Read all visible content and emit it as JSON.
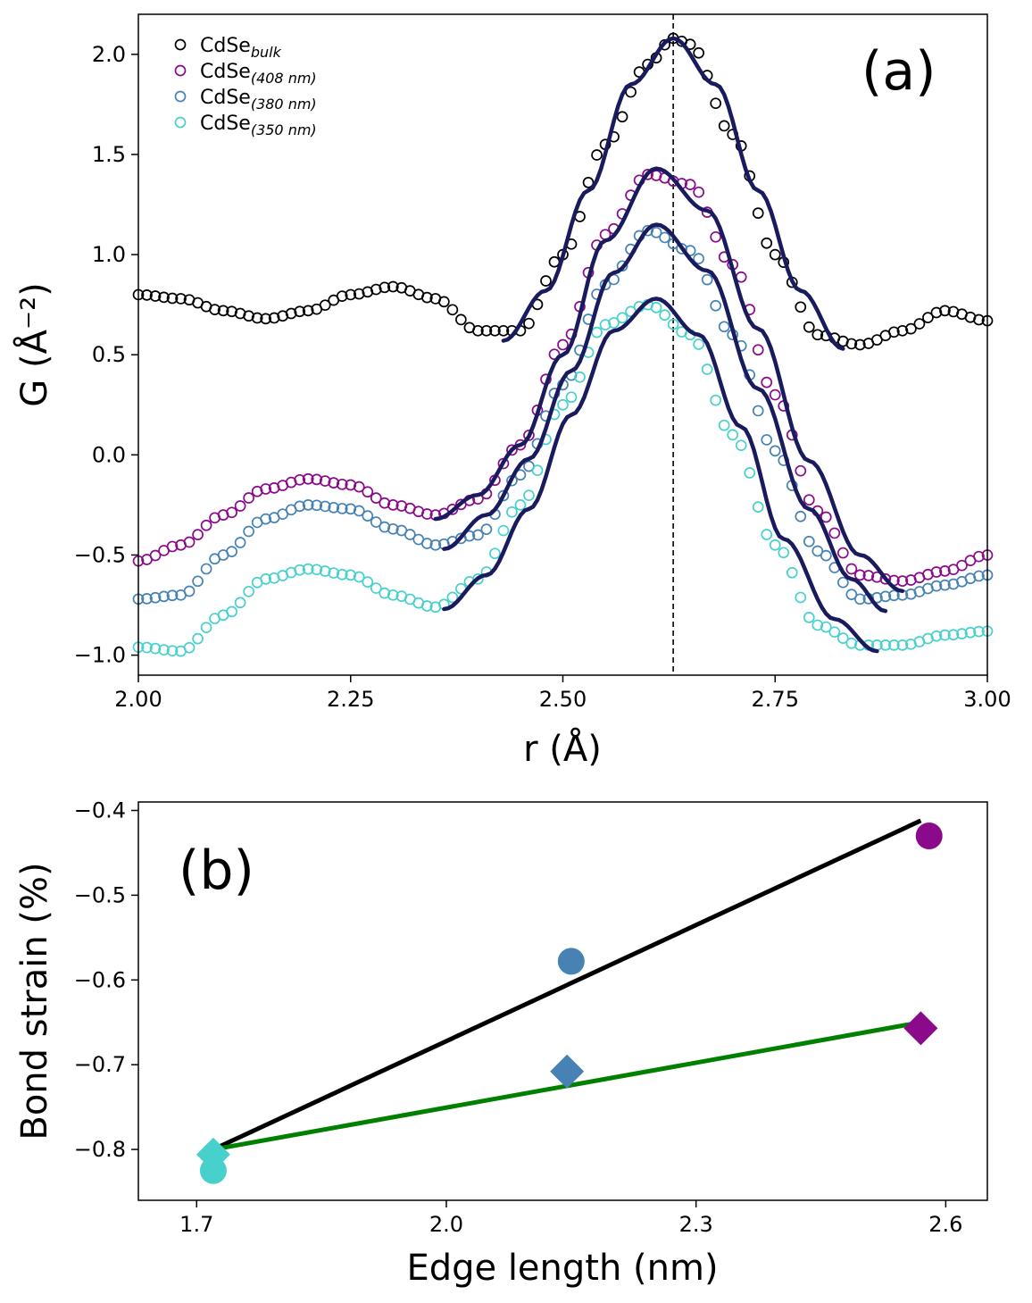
{
  "chart_data": [
    {
      "panel": "(a)",
      "type": "scatter",
      "xlabel": "r (Å)",
      "ylabel": "G (Å⁻²)",
      "xlim": [
        2.0,
        3.0
      ],
      "ylim": [
        -1.1,
        2.2
      ],
      "xticks": [
        2.0,
        2.25,
        2.5,
        2.75,
        3.0
      ],
      "xtick_labels": [
        "2.00",
        "2.25",
        "2.50",
        "2.75",
        "3.00"
      ],
      "yticks": [
        -1.0,
        -0.5,
        0.0,
        0.5,
        1.0,
        1.5,
        2.0
      ],
      "ytick_labels": [
        "−1.0",
        "−0.5",
        "0.0",
        "0.5",
        "1.0",
        "1.5",
        "2.0"
      ],
      "vline_x": 2.63,
      "legend_position": "top-left",
      "fit_color": "#1a1a5e",
      "series": [
        {
          "name": "CdSe",
          "subscript": "bulk",
          "color": "#000000",
          "x": [
            2.0,
            2.05,
            2.1,
            2.15,
            2.2,
            2.25,
            2.3,
            2.35,
            2.4,
            2.45,
            2.5,
            2.55,
            2.6,
            2.63,
            2.65,
            2.7,
            2.75,
            2.8,
            2.85,
            2.9,
            2.95,
            3.0
          ],
          "y": [
            0.8,
            0.78,
            0.72,
            0.68,
            0.72,
            0.8,
            0.84,
            0.78,
            0.62,
            0.62,
            1.0,
            1.55,
            1.95,
            2.08,
            2.05,
            1.6,
            1.0,
            0.6,
            0.55,
            0.62,
            0.72,
            0.67
          ],
          "fit_x": [
            2.43,
            2.48,
            2.53,
            2.58,
            2.63,
            2.68,
            2.73,
            2.78,
            2.83
          ],
          "fit_y": [
            0.57,
            0.82,
            1.32,
            1.85,
            2.08,
            1.85,
            1.32,
            0.82,
            0.53
          ]
        },
        {
          "name": "CdSe",
          "subscript": "(408 nm)",
          "color": "#8b0a8b",
          "x": [
            2.0,
            2.05,
            2.1,
            2.15,
            2.2,
            2.25,
            2.3,
            2.35,
            2.4,
            2.45,
            2.5,
            2.55,
            2.6,
            2.65,
            2.7,
            2.75,
            2.8,
            2.85,
            2.9,
            2.95,
            3.0
          ],
          "y": [
            -0.53,
            -0.45,
            -0.3,
            -0.17,
            -0.12,
            -0.15,
            -0.25,
            -0.3,
            -0.22,
            0.05,
            0.55,
            1.1,
            1.4,
            1.35,
            0.95,
            0.3,
            -0.28,
            -0.6,
            -0.63,
            -0.58,
            -0.5
          ],
          "fit_x": [
            2.35,
            2.4,
            2.45,
            2.5,
            2.55,
            2.61,
            2.67,
            2.73,
            2.79,
            2.85,
            2.9
          ],
          "fit_y": [
            -0.32,
            -0.2,
            0.05,
            0.5,
            1.07,
            1.43,
            1.22,
            0.63,
            -0.03,
            -0.5,
            -0.68
          ]
        },
        {
          "name": "CdSe",
          "subscript": "(380 nm)",
          "color": "#4682b4",
          "x": [
            2.0,
            2.05,
            2.1,
            2.15,
            2.2,
            2.25,
            2.3,
            2.35,
            2.4,
            2.45,
            2.5,
            2.55,
            2.6,
            2.65,
            2.7,
            2.75,
            2.8,
            2.85,
            2.9,
            2.95,
            3.0
          ],
          "y": [
            -0.72,
            -0.7,
            -0.5,
            -0.32,
            -0.25,
            -0.27,
            -0.37,
            -0.45,
            -0.4,
            -0.1,
            0.35,
            0.85,
            1.12,
            1.02,
            0.6,
            0.02,
            -0.48,
            -0.72,
            -0.7,
            -0.65,
            -0.6
          ],
          "fit_x": [
            2.36,
            2.41,
            2.46,
            2.51,
            2.56,
            2.61,
            2.67,
            2.73,
            2.79,
            2.84,
            2.88
          ],
          "fit_y": [
            -0.47,
            -0.3,
            -0.02,
            0.42,
            0.91,
            1.15,
            0.92,
            0.33,
            -0.27,
            -0.62,
            -0.78
          ]
        },
        {
          "name": "CdSe",
          "subscript": "(350 nm)",
          "color": "#48d1cc",
          "x": [
            2.0,
            2.05,
            2.1,
            2.15,
            2.2,
            2.25,
            2.3,
            2.35,
            2.4,
            2.45,
            2.5,
            2.55,
            2.6,
            2.65,
            2.7,
            2.75,
            2.8,
            2.85,
            2.9,
            2.95,
            3.0
          ],
          "y": [
            -0.96,
            -0.98,
            -0.8,
            -0.62,
            -0.57,
            -0.6,
            -0.7,
            -0.76,
            -0.62,
            -0.25,
            0.25,
            0.65,
            0.75,
            0.6,
            0.1,
            -0.45,
            -0.85,
            -0.95,
            -0.95,
            -0.9,
            -0.88
          ],
          "fit_x": [
            2.36,
            2.41,
            2.46,
            2.51,
            2.56,
            2.61,
            2.66,
            2.71,
            2.76,
            2.82,
            2.87
          ],
          "fit_y": [
            -0.77,
            -0.6,
            -0.27,
            0.2,
            0.62,
            0.78,
            0.6,
            0.14,
            -0.42,
            -0.82,
            -0.98
          ]
        }
      ]
    },
    {
      "panel": "(b)",
      "type": "scatter",
      "xlabel": "Edge length (nm)",
      "ylabel": "Bond strain (%)",
      "xlim": [
        1.63,
        2.65
      ],
      "ylim": [
        -0.86,
        -0.39
      ],
      "xticks": [
        1.7,
        2.0,
        2.3,
        2.6
      ],
      "xtick_labels": [
        "1.7",
        "2.0",
        "2.3",
        "2.6"
      ],
      "yticks": [
        -0.8,
        -0.7,
        -0.6,
        -0.5,
        -0.4
      ],
      "ytick_labels": [
        "−0.8",
        "−0.7",
        "−0.6",
        "−0.5",
        "−0.4"
      ],
      "series": [
        {
          "marker": "circle",
          "points": [
            {
              "x": 1.72,
              "y": -0.825,
              "color": "#48d1cc"
            },
            {
              "x": 2.15,
              "y": -0.578,
              "color": "#4682b4"
            },
            {
              "x": 2.58,
              "y": -0.43,
              "color": "#8b0a8b"
            }
          ]
        },
        {
          "marker": "diamond",
          "points": [
            {
              "x": 1.72,
              "y": -0.806,
              "color": "#48d1cc"
            },
            {
              "x": 2.145,
              "y": -0.708,
              "color": "#4682b4"
            },
            {
              "x": 2.57,
              "y": -0.657,
              "color": "#8b0a8b"
            }
          ]
        }
      ],
      "lines": [
        {
          "color": "#000000",
          "x": [
            1.72,
            2.57
          ],
          "y": [
            -0.8,
            -0.412
          ]
        },
        {
          "color": "#008000",
          "x": [
            1.72,
            2.57
          ],
          "y": [
            -0.8,
            -0.65
          ]
        }
      ]
    }
  ]
}
